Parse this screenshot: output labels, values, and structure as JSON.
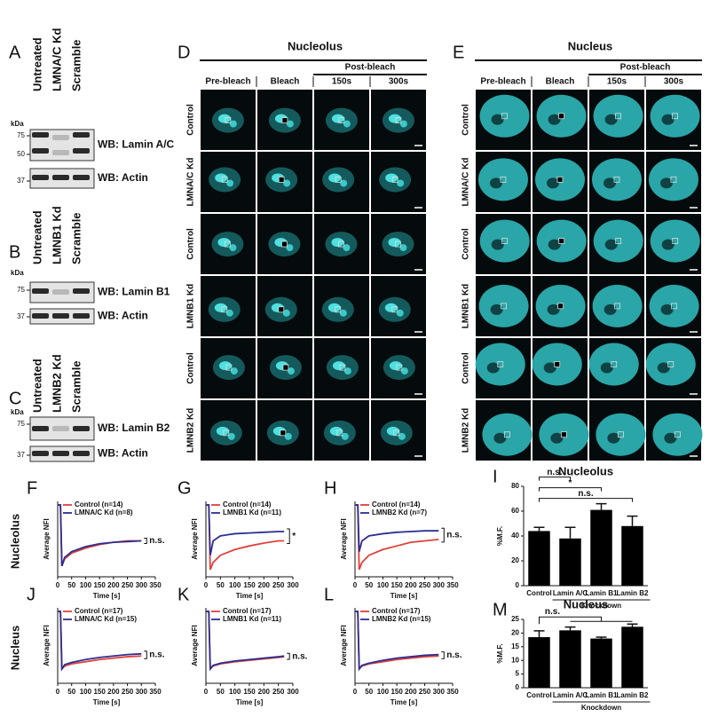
{
  "panels": {
    "A": {
      "label": "A",
      "lanes": [
        "Untreated",
        "LMNA/C Kd",
        "Scramble"
      ],
      "kda": "kDa",
      "markers": [
        "75",
        "50",
        "37"
      ],
      "blots": [
        "WB: Lamin A/C",
        "WB: Actin"
      ]
    },
    "B": {
      "label": "B",
      "lanes": [
        "Untreated",
        "LMNB1 Kd",
        "Scramble"
      ],
      "kda": "kDa",
      "markers": [
        "75",
        "37"
      ],
      "blots": [
        "WB: Lamin B1",
        "WB: Actin"
      ]
    },
    "C": {
      "label": "C",
      "lanes": [
        "Untreated",
        "LMNB2 Kd",
        "Scramble"
      ],
      "kda": "kDa",
      "markers": [
        "75",
        "37"
      ],
      "blots": [
        "WB: Lamin B2",
        "WB: Actin"
      ]
    },
    "D": {
      "label": "D",
      "title": "Nucleolus",
      "post": "Post-bleach",
      "columns": [
        "Pre-bleach",
        "Bleach",
        "150s",
        "300s"
      ],
      "rows": [
        "Control",
        "LMNA/C Kd",
        "Control",
        "LMNB1 Kd",
        "Control",
        "LMNB2 Kd"
      ]
    },
    "E": {
      "label": "E",
      "title": "Nucleus",
      "post": "Post-bleach",
      "columns": [
        "Pre-bleach",
        "Bleach",
        "150s",
        "300s"
      ],
      "rows": [
        "Control",
        "LMNA/C Kd",
        "Control",
        "LMNB1 Kd",
        "Control",
        "LMNB2 Kd"
      ]
    }
  },
  "row_labels": [
    "Nucleolus",
    "Nucleus"
  ],
  "chart_data": [
    {
      "type": "line",
      "panel": "F",
      "xlabel": "Time [s]",
      "ylabel": "Average NFI",
      "annotation": "n.s.",
      "x": [
        0,
        10,
        15,
        25,
        50,
        100,
        150,
        200,
        250,
        300
      ],
      "xlim": [
        0,
        350
      ],
      "xticks": [
        0,
        50,
        100,
        150,
        200,
        250,
        300,
        350
      ],
      "ylim": [
        0,
        1.05
      ],
      "series": [
        {
          "name": "Control (n=14)",
          "color": "#e0403a",
          "values": [
            1,
            1,
            0.15,
            0.25,
            0.33,
            0.4,
            0.45,
            0.48,
            0.5,
            0.5
          ]
        },
        {
          "name": "LMNA/C Kd (n=8)",
          "color": "#2d2f8f",
          "values": [
            1,
            1,
            0.15,
            0.27,
            0.35,
            0.42,
            0.46,
            0.48,
            0.49,
            0.5
          ]
        }
      ]
    },
    {
      "type": "line",
      "panel": "G",
      "xlabel": "Time [s]",
      "ylabel": "Average NFI",
      "annotation": "*",
      "x": [
        0,
        10,
        15,
        25,
        50,
        100,
        150,
        200,
        250,
        270
      ],
      "xlim": [
        0,
        300
      ],
      "xticks": [
        0,
        50,
        100,
        150,
        200,
        250,
        300
      ],
      "ylim": [
        0,
        1.05
      ],
      "series": [
        {
          "name": "Control (n=14)",
          "color": "#e0403a",
          "values": [
            1,
            1,
            0.1,
            0.2,
            0.3,
            0.38,
            0.43,
            0.47,
            0.5,
            0.5
          ]
        },
        {
          "name": "LMNB1 Kd (n=11)",
          "color": "#2d2f8f",
          "values": [
            1,
            1,
            0.3,
            0.5,
            0.57,
            0.6,
            0.61,
            0.62,
            0.63,
            0.63
          ]
        }
      ]
    },
    {
      "type": "line",
      "panel": "H",
      "xlabel": "Time [s]",
      "ylabel": "Average NFI",
      "annotation": "n.s.",
      "x": [
        0,
        10,
        15,
        25,
        50,
        100,
        150,
        200,
        250,
        300
      ],
      "xlim": [
        0,
        350
      ],
      "xticks": [
        0,
        50,
        100,
        150,
        200,
        250,
        300,
        350
      ],
      "ylim": [
        0,
        1.05
      ],
      "series": [
        {
          "name": "Control (n=14)",
          "color": "#e0403a",
          "values": [
            1,
            1,
            0.1,
            0.2,
            0.3,
            0.38,
            0.43,
            0.48,
            0.5,
            0.52
          ]
        },
        {
          "name": "LMNB2 Kd (n=7)",
          "color": "#2d2f8f",
          "values": [
            1,
            1,
            0.35,
            0.5,
            0.57,
            0.6,
            0.62,
            0.63,
            0.64,
            0.64
          ]
        }
      ]
    },
    {
      "type": "line",
      "panel": "J",
      "xlabel": "Time [s]",
      "ylabel": "Average NFI",
      "annotation": "n.s.",
      "x": [
        0,
        10,
        15,
        25,
        50,
        100,
        150,
        200,
        250,
        300
      ],
      "xlim": [
        0,
        350
      ],
      "xticks": [
        0,
        50,
        100,
        150,
        200,
        250,
        300,
        350
      ],
      "ylim": [
        0,
        1.05
      ],
      "series": [
        {
          "name": "Control (n=17)",
          "color": "#e0403a",
          "values": [
            1,
            1,
            0.2,
            0.24,
            0.27,
            0.3,
            0.33,
            0.35,
            0.37,
            0.38
          ]
        },
        {
          "name": "LMNA/C Kd (n=15)",
          "color": "#2d2f8f",
          "values": [
            1,
            1,
            0.2,
            0.26,
            0.29,
            0.33,
            0.36,
            0.38,
            0.4,
            0.41
          ]
        }
      ]
    },
    {
      "type": "line",
      "panel": "K",
      "xlabel": "Time [s]",
      "ylabel": "Average NFI",
      "annotation": "n.s.",
      "x": [
        0,
        10,
        15,
        25,
        50,
        100,
        150,
        200,
        250,
        270
      ],
      "xlim": [
        0,
        300
      ],
      "xticks": [
        0,
        50,
        100,
        150,
        200,
        250,
        300
      ],
      "ylim": [
        0,
        1.05
      ],
      "series": [
        {
          "name": "Control (n=17)",
          "color": "#e0403a",
          "values": [
            1,
            1,
            0.2,
            0.24,
            0.27,
            0.3,
            0.32,
            0.34,
            0.36,
            0.37
          ]
        },
        {
          "name": "LMNB1 Kd (n=11)",
          "color": "#2d2f8f",
          "values": [
            1,
            1,
            0.2,
            0.25,
            0.28,
            0.31,
            0.33,
            0.35,
            0.37,
            0.38
          ]
        }
      ]
    },
    {
      "type": "line",
      "panel": "L",
      "xlabel": "Time [s]",
      "ylabel": "Average NFI",
      "annotation": "n.s.",
      "x": [
        0,
        10,
        15,
        25,
        50,
        100,
        150,
        200,
        250,
        300
      ],
      "xlim": [
        0,
        350
      ],
      "xticks": [
        0,
        50,
        100,
        150,
        200,
        250,
        300,
        350
      ],
      "ylim": [
        0,
        1.05
      ],
      "series": [
        {
          "name": "Control (n=17)",
          "color": "#e0403a",
          "values": [
            1,
            1,
            0.2,
            0.24,
            0.27,
            0.3,
            0.33,
            0.35,
            0.37,
            0.38
          ]
        },
        {
          "name": "LMNB2 Kd (n=15)",
          "color": "#2d2f8f",
          "values": [
            1,
            1,
            0.2,
            0.25,
            0.28,
            0.32,
            0.35,
            0.37,
            0.39,
            0.4
          ]
        }
      ]
    },
    {
      "type": "bar",
      "panel": "I",
      "title": "Nucleolus",
      "ylabel": "%M.F.",
      "group_label": "Knockdown",
      "annotations": [
        "n.s.",
        "*",
        "n.s."
      ],
      "categories": [
        "Control",
        "Lamin A/C",
        "Lamin B1",
        "Lamin B2"
      ],
      "values": [
        44,
        38,
        61,
        48
      ],
      "errors": [
        3,
        9,
        5,
        8
      ],
      "color": "#000000",
      "ylim": [
        0,
        80
      ],
      "yticks": [
        0,
        20,
        40,
        60,
        80
      ]
    },
    {
      "type": "bar",
      "panel": "M",
      "title": "Nucleus",
      "ylabel": "%M.F.",
      "group_label": "Knockdown",
      "annotations": [
        "n.s."
      ],
      "categories": [
        "Control",
        "Lamin A/C",
        "Lamin B1",
        "Lamin B2"
      ],
      "values": [
        18.5,
        21,
        18,
        22.3
      ],
      "errors": [
        2.3,
        1.2,
        0.5,
        1
      ],
      "color": "#000000",
      "ylim": [
        0,
        25
      ],
      "yticks": [
        0,
        5,
        10,
        15,
        20,
        25
      ]
    }
  ]
}
